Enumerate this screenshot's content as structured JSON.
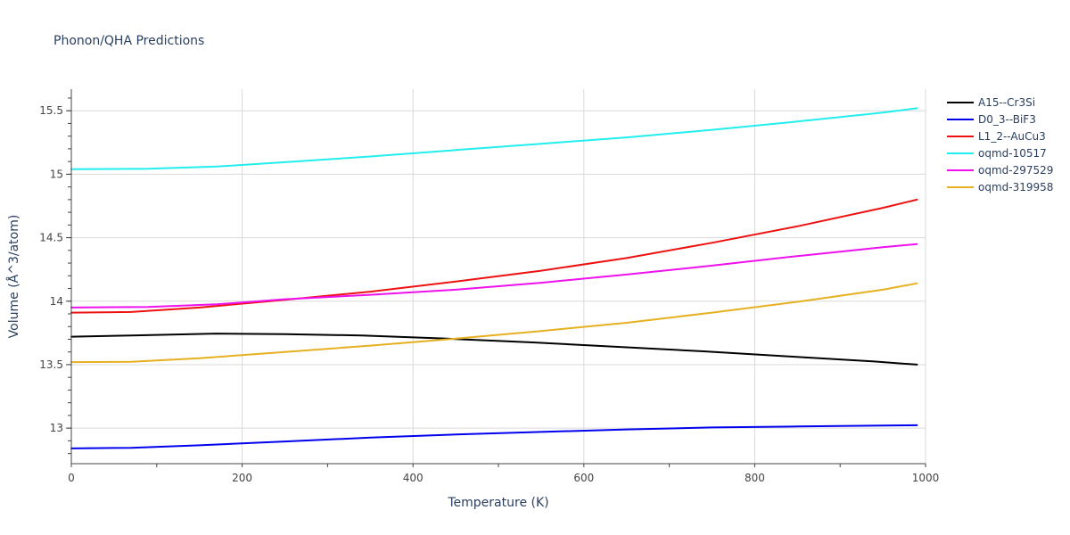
{
  "chart_data": {
    "type": "line",
    "title": "Phonon/QHA Predictions",
    "xlabel": "Temperature (K)",
    "ylabel": "Volume (Å^3/atom)",
    "xlim": [
      0,
      1000
    ],
    "ylim": [
      12.72,
      15.67
    ],
    "xticks": [
      0,
      200,
      400,
      600,
      800,
      1000
    ],
    "xtick_labels": [
      "0",
      "200",
      "400",
      "600",
      "800",
      "1000"
    ],
    "yticks": [
      13,
      13.5,
      14,
      14.5,
      15,
      15.5
    ],
    "ytick_labels": [
      "13",
      "13.5",
      "14",
      "14.5",
      "15",
      "15.5"
    ],
    "grid": true,
    "legend_position": "top-right",
    "series": [
      {
        "name": "A15--Cr3Si",
        "color": "#000000",
        "x": [
          0,
          70,
          170,
          250,
          340,
          440,
          540,
          640,
          740,
          840,
          940,
          990
        ],
        "y": [
          13.72,
          13.73,
          13.745,
          13.74,
          13.73,
          13.705,
          13.675,
          13.64,
          13.605,
          13.565,
          13.525,
          13.5
        ]
      },
      {
        "name": "D0_3--BiF3",
        "color": "#0000ee",
        "x": [
          0,
          70,
          150,
          250,
          350,
          450,
          550,
          650,
          750,
          850,
          950,
          990
        ],
        "y": [
          12.84,
          12.845,
          12.865,
          12.895,
          12.925,
          12.95,
          12.97,
          12.99,
          13.005,
          13.013,
          13.02,
          13.023
        ]
      },
      {
        "name": "L1_2--AuCu3",
        "color": "#ee1111",
        "x": [
          0,
          70,
          150,
          250,
          350,
          450,
          550,
          650,
          750,
          850,
          950,
          990
        ],
        "y": [
          13.91,
          13.915,
          13.95,
          14.01,
          14.075,
          14.155,
          14.24,
          14.34,
          14.46,
          14.59,
          14.735,
          14.8
        ]
      },
      {
        "name": "oqmd-10517",
        "color": "#22eeee",
        "x": [
          0,
          90,
          170,
          250,
          350,
          450,
          550,
          650,
          750,
          850,
          950,
          990
        ],
        "y": [
          15.04,
          15.043,
          15.06,
          15.095,
          15.14,
          15.19,
          15.24,
          15.29,
          15.35,
          15.415,
          15.485,
          15.52
        ]
      },
      {
        "name": "oqmd-297529",
        "color": "#ee11ee",
        "x": [
          0,
          90,
          170,
          250,
          350,
          450,
          550,
          650,
          750,
          850,
          950,
          990
        ],
        "y": [
          13.95,
          13.955,
          13.975,
          14.015,
          14.05,
          14.09,
          14.145,
          14.21,
          14.28,
          14.355,
          14.425,
          14.45
        ]
      },
      {
        "name": "oqmd-319958",
        "color": "#e6b020",
        "x": [
          0,
          70,
          150,
          250,
          350,
          450,
          550,
          650,
          750,
          850,
          950,
          990
        ],
        "y": [
          13.52,
          13.523,
          13.55,
          13.6,
          13.65,
          13.705,
          13.765,
          13.83,
          13.91,
          13.995,
          14.09,
          14.14
        ]
      }
    ]
  }
}
